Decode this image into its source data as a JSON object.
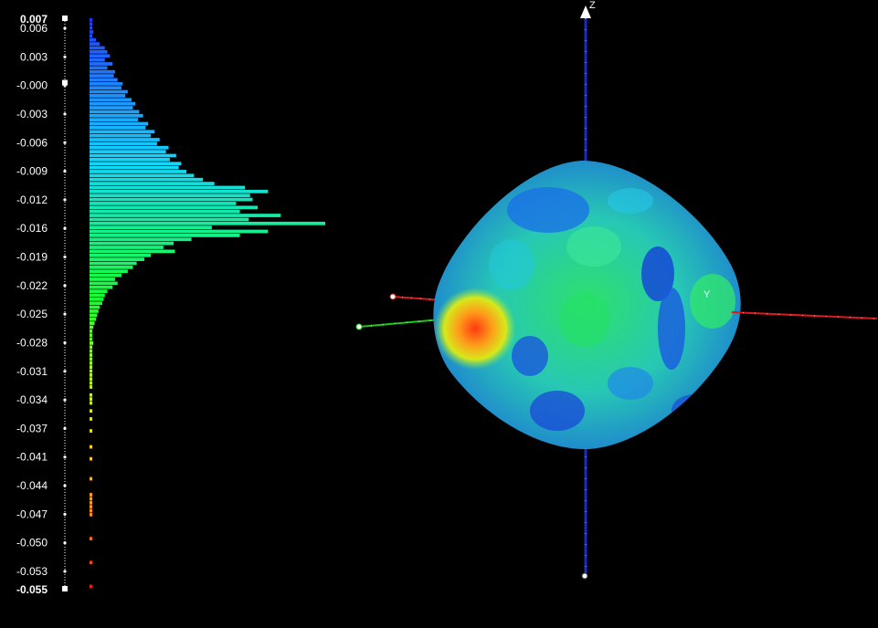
{
  "colorbar": {
    "max_label": "0.007",
    "min_label": "-0.055",
    "tick_labels": [
      "0.006",
      "0.003",
      "-0.000",
      "-0.003",
      "-0.006",
      "-0.009",
      "-0.012",
      "-0.016",
      "-0.019",
      "-0.022",
      "-0.025",
      "-0.028",
      "-0.031",
      "-0.034",
      "-0.037",
      "-0.041",
      "-0.044",
      "-0.047",
      "-0.050",
      "-0.053"
    ],
    "colors": [
      "#1f3bff",
      "#1e8cff",
      "#12d8ff",
      "#14f08c",
      "#18ff2e",
      "#b4ff18",
      "#ffd21a",
      "#ff8c1a",
      "#ff1a10"
    ]
  },
  "chart_data": {
    "type": "bar",
    "orientation": "horizontal",
    "range": [
      -0.055,
      0.007
    ],
    "histogram_bins": [
      1,
      2,
      1,
      3,
      2,
      5,
      8,
      12,
      14,
      16,
      12,
      18,
      14,
      20,
      19,
      22,
      26,
      25,
      30,
      28,
      33,
      36,
      34,
      39,
      42,
      38,
      46,
      44,
      51,
      48,
      55,
      53,
      62,
      60,
      68,
      63,
      72,
      70,
      76,
      82,
      89,
      98,
      122,
      140,
      126,
      128,
      115,
      132,
      118,
      150,
      125,
      185,
      96,
      140,
      118,
      80,
      66,
      58,
      67,
      48,
      43,
      37,
      34,
      30,
      25,
      20,
      22,
      18,
      14,
      12,
      11,
      10,
      8,
      7,
      6,
      5,
      4,
      3,
      2,
      2,
      2,
      3,
      2,
      1,
      2,
      1,
      2,
      2,
      1,
      2,
      1,
      1,
      1,
      0,
      1,
      1,
      1,
      0,
      1,
      0,
      1,
      0,
      0,
      1,
      0,
      0,
      0,
      1,
      0,
      0,
      1,
      0,
      0,
      0,
      0,
      1,
      0,
      0,
      0,
      1,
      1,
      1,
      1,
      1,
      1,
      0,
      0,
      0,
      0,
      0,
      1,
      0,
      0,
      0,
      0,
      0,
      1,
      0,
      0,
      0,
      0,
      0,
      1
    ]
  },
  "view3d": {
    "z_axis_label": "Z",
    "y_axis_label": "Y",
    "axis_colors": {
      "z": "#1a2cc8",
      "y": "#d81a1a",
      "x": "#1ac81a"
    }
  }
}
